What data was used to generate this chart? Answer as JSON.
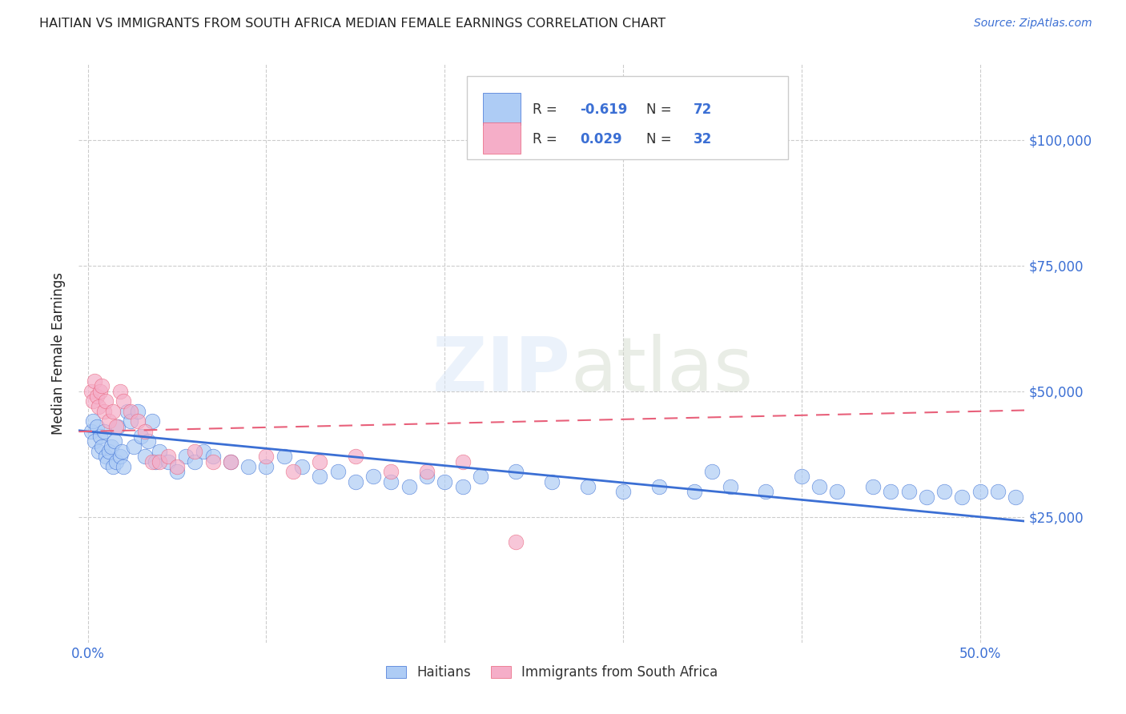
{
  "title": "HAITIAN VS IMMIGRANTS FROM SOUTH AFRICA MEDIAN FEMALE EARNINGS CORRELATION CHART",
  "source": "Source: ZipAtlas.com",
  "ylabel": "Median Female Earnings",
  "xlabel_ticks": [
    "0.0%",
    "",
    "",
    "",
    "",
    "50.0%"
  ],
  "xlabel_vals": [
    0.0,
    0.1,
    0.2,
    0.3,
    0.4,
    0.5
  ],
  "ytick_labels": [
    "$25,000",
    "$50,000",
    "$75,000",
    "$100,000"
  ],
  "ytick_vals": [
    25000,
    50000,
    75000,
    100000
  ],
  "ylim": [
    0,
    115000
  ],
  "xlim": [
    -0.005,
    0.525
  ],
  "watermark": "ZIPatlas",
  "legend_label1": "Haitians",
  "legend_label2": "Immigrants from South Africa",
  "R1": "-0.619",
  "N1": "72",
  "R2": "0.029",
  "N2": "32",
  "color1": "#aeccf5",
  "color2": "#f5aec8",
  "line1_color": "#3b6fd4",
  "line2_color": "#e8607a",
  "title_color": "#222222",
  "axis_label_color": "#3b6fd4",
  "background_color": "#ffffff",
  "haitian_x": [
    0.002,
    0.003,
    0.004,
    0.005,
    0.006,
    0.007,
    0.008,
    0.009,
    0.01,
    0.011,
    0.012,
    0.013,
    0.014,
    0.015,
    0.016,
    0.017,
    0.018,
    0.019,
    0.02,
    0.022,
    0.024,
    0.026,
    0.028,
    0.03,
    0.032,
    0.034,
    0.036,
    0.038,
    0.04,
    0.045,
    0.05,
    0.055,
    0.06,
    0.065,
    0.07,
    0.08,
    0.09,
    0.1,
    0.11,
    0.12,
    0.13,
    0.14,
    0.15,
    0.16,
    0.17,
    0.18,
    0.19,
    0.2,
    0.21,
    0.22,
    0.24,
    0.26,
    0.28,
    0.3,
    0.32,
    0.34,
    0.35,
    0.36,
    0.38,
    0.4,
    0.41,
    0.42,
    0.44,
    0.45,
    0.46,
    0.47,
    0.48,
    0.49,
    0.5,
    0.51,
    0.52,
    0.53
  ],
  "haitian_y": [
    42000,
    44000,
    40000,
    43000,
    38000,
    41000,
    39000,
    42000,
    37000,
    36000,
    38000,
    39000,
    35000,
    40000,
    36000,
    43000,
    37000,
    38000,
    35000,
    46000,
    44000,
    39000,
    46000,
    41000,
    37000,
    40000,
    44000,
    36000,
    38000,
    36000,
    34000,
    37000,
    36000,
    38000,
    37000,
    36000,
    35000,
    35000,
    37000,
    35000,
    33000,
    34000,
    32000,
    33000,
    32000,
    31000,
    33000,
    32000,
    31000,
    33000,
    34000,
    32000,
    31000,
    30000,
    31000,
    30000,
    34000,
    31000,
    30000,
    33000,
    31000,
    30000,
    31000,
    30000,
    30000,
    29000,
    30000,
    29000,
    30000,
    30000,
    29000,
    29000
  ],
  "sa_x": [
    0.002,
    0.003,
    0.004,
    0.005,
    0.006,
    0.007,
    0.008,
    0.009,
    0.01,
    0.012,
    0.014,
    0.016,
    0.018,
    0.02,
    0.024,
    0.028,
    0.032,
    0.036,
    0.04,
    0.045,
    0.05,
    0.06,
    0.07,
    0.08,
    0.1,
    0.115,
    0.13,
    0.15,
    0.17,
    0.19,
    0.21,
    0.24
  ],
  "sa_y": [
    50000,
    48000,
    52000,
    49000,
    47000,
    50000,
    51000,
    46000,
    48000,
    44000,
    46000,
    43000,
    50000,
    48000,
    46000,
    44000,
    42000,
    36000,
    36000,
    37000,
    35000,
    38000,
    36000,
    36000,
    37000,
    34000,
    36000,
    37000,
    34000,
    34000,
    36000,
    20000
  ]
}
